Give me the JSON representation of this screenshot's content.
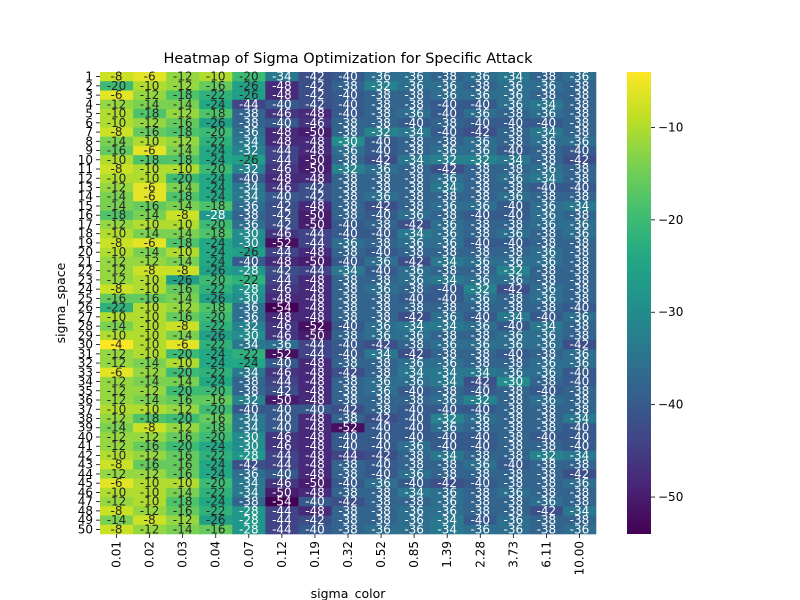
{
  "chart_data": {
    "type": "heatmap",
    "title": "Heatmap of Sigma Optimization for Specific Attack",
    "xlabel": "sigma_color",
    "ylabel": "sigma_space",
    "x_categories": [
      "0.01",
      "0.02",
      "0.03",
      "0.04",
      "0.07",
      "0.12",
      "0.19",
      "0.32",
      "0.52",
      "0.85",
      "1.39",
      "2.28",
      "3.73",
      "6.11",
      "10.00"
    ],
    "y_categories": [
      "1",
      "2",
      "3",
      "4",
      "5",
      "6",
      "7",
      "8",
      "9",
      "10",
      "11",
      "12",
      "13",
      "14",
      "15",
      "16",
      "17",
      "18",
      "19",
      "20",
      "21",
      "22",
      "23",
      "24",
      "25",
      "26",
      "27",
      "28",
      "29",
      "30",
      "31",
      "32",
      "33",
      "34",
      "35",
      "36",
      "37",
      "38",
      "39",
      "40",
      "41",
      "42",
      "43",
      "44",
      "45",
      "46",
      "47",
      "48",
      "49",
      "50"
    ],
    "values": [
      [
        -8,
        -6,
        -12,
        -10,
        -20,
        -34,
        -42,
        -40,
        -36,
        -36,
        -38,
        -36,
        -34,
        -38,
        -36
      ],
      [
        -20,
        -10,
        -12,
        -16,
        -26,
        -48,
        -42,
        -38,
        -32,
        -36,
        -36,
        -38,
        -36,
        -36,
        -38
      ],
      [
        -6,
        -12,
        -18,
        -22,
        -26,
        -48,
        -42,
        -40,
        -38,
        -38,
        -36,
        -36,
        -36,
        -38,
        -38
      ],
      [
        -12,
        -14,
        -14,
        -24,
        -44,
        -40,
        -42,
        -40,
        -38,
        -38,
        -40,
        -40,
        -36,
        -34,
        -38
      ],
      [
        -10,
        -18,
        -12,
        -18,
        -38,
        -46,
        -48,
        -40,
        -38,
        -36,
        -40,
        -36,
        -38,
        -36,
        -38
      ],
      [
        -10,
        -12,
        -16,
        -26,
        -38,
        -40,
        -46,
        -38,
        -38,
        -40,
        -38,
        -40,
        -40,
        -40,
        -38
      ],
      [
        -8,
        -16,
        -18,
        -20,
        -36,
        -48,
        -50,
        -38,
        -32,
        -34,
        -40,
        -42,
        -38,
        -34,
        -38
      ],
      [
        -14,
        -10,
        -12,
        -22,
        -34,
        -48,
        -48,
        -30,
        -40,
        -38,
        -38,
        -36,
        -38,
        -36,
        -36
      ],
      [
        -16,
        -6,
        -14,
        -24,
        -32,
        -44,
        -48,
        -36,
        -40,
        -38,
        -36,
        -36,
        -40,
        -38,
        -40
      ],
      [
        -10,
        -18,
        -18,
        -24,
        -26,
        -44,
        -50,
        -38,
        -42,
        -34,
        -32,
        -32,
        -34,
        -38,
        -42
      ],
      [
        -8,
        -10,
        -10,
        -20,
        -32,
        -46,
        -50,
        -32,
        -36,
        -38,
        -42,
        -38,
        -38,
        -36,
        -38
      ],
      [
        -10,
        -10,
        -20,
        -24,
        -40,
        -48,
        -48,
        -38,
        -38,
        -38,
        -36,
        -38,
        -36,
        -34,
        -38
      ],
      [
        -12,
        -6,
        -14,
        -24,
        -34,
        -46,
        -42,
        -38,
        -38,
        -38,
        -34,
        -38,
        -38,
        -40,
        -40
      ],
      [
        -14,
        -6,
        -18,
        -24,
        -34,
        -40,
        -42,
        -38,
        -36,
        -38,
        -38,
        -38,
        -36,
        -38,
        -38
      ],
      [
        -14,
        -16,
        -14,
        -18,
        -36,
        -42,
        -48,
        -38,
        -42,
        -38,
        -36,
        -36,
        -40,
        -36,
        -34
      ],
      [
        -18,
        -14,
        -8,
        -28,
        -38,
        -42,
        -50,
        -38,
        -40,
        -36,
        -38,
        -40,
        -40,
        -36,
        -38
      ],
      [
        -12,
        -10,
        -10,
        -20,
        -36,
        -42,
        -50,
        -40,
        -38,
        -42,
        -36,
        -38,
        -38,
        -36,
        -36
      ],
      [
        -10,
        -14,
        -14,
        -18,
        -30,
        -46,
        -44,
        -40,
        -40,
        -34,
        -36,
        -38,
        -36,
        -38,
        -36
      ],
      [
        -8,
        -6,
        -18,
        -24,
        -30,
        -52,
        -44,
        -36,
        -38,
        -36,
        -36,
        -40,
        -40,
        -38,
        -38
      ],
      [
        -10,
        -14,
        -10,
        -24,
        -26,
        -44,
        -48,
        -38,
        -40,
        -38,
        -38,
        -38,
        -38,
        -36,
        -38
      ],
      [
        -12,
        -12,
        -14,
        -24,
        -40,
        -48,
        -50,
        -40,
        -36,
        -42,
        -34,
        -36,
        -36,
        -36,
        -38
      ],
      [
        -12,
        -8,
        -8,
        -26,
        -28,
        -42,
        -44,
        -34,
        -40,
        -36,
        -38,
        -38,
        -32,
        -38,
        -38
      ],
      [
        -12,
        -10,
        -26,
        -20,
        -22,
        -44,
        -48,
        -38,
        -38,
        -36,
        -34,
        -36,
        -36,
        -38,
        -38
      ],
      [
        -8,
        -10,
        -16,
        -22,
        -28,
        -46,
        -48,
        -38,
        -36,
        -38,
        -40,
        -32,
        -42,
        -36,
        -38
      ],
      [
        -16,
        -16,
        -14,
        -26,
        -30,
        -48,
        -48,
        -38,
        -38,
        -40,
        -40,
        -36,
        -38,
        -36,
        -38
      ],
      [
        -22,
        -10,
        -12,
        -18,
        -36,
        -54,
        -48,
        -38,
        -38,
        -38,
        -38,
        -38,
        -38,
        -38,
        -40
      ],
      [
        -10,
        -10,
        -16,
        -20,
        -36,
        -48,
        -48,
        -38,
        -38,
        -42,
        -36,
        -40,
        -34,
        -40,
        -36
      ],
      [
        -14,
        -10,
        -8,
        -22,
        -32,
        -46,
        -52,
        -40,
        -36,
        -34,
        -34,
        -36,
        -40,
        -34,
        -38
      ],
      [
        -10,
        -10,
        -14,
        -26,
        -30,
        -46,
        -50,
        -38,
        -36,
        -36,
        -38,
        -38,
        -36,
        -36,
        -38
      ],
      [
        -4,
        -10,
        -6,
        -22,
        -34,
        -36,
        -44,
        -40,
        -42,
        -38,
        -36,
        -36,
        -36,
        -36,
        -42
      ],
      [
        -12,
        -10,
        -20,
        -24,
        -22,
        -52,
        -44,
        -40,
        -34,
        -42,
        -38,
        -38,
        -40,
        -38,
        -36
      ],
      [
        -12,
        -14,
        -10,
        -24,
        -24,
        -40,
        -48,
        -38,
        -38,
        -36,
        -36,
        -38,
        -38,
        -36,
        -36
      ],
      [
        -6,
        -12,
        -20,
        -22,
        -34,
        -46,
        -48,
        -42,
        -38,
        -34,
        -34,
        -34,
        -36,
        -36,
        -40
      ],
      [
        -12,
        -14,
        -14,
        -24,
        -38,
        -44,
        -48,
        -38,
        -36,
        -36,
        -34,
        -42,
        -30,
        -38,
        -40
      ],
      [
        -12,
        -12,
        -20,
        -20,
        -38,
        -42,
        -48,
        -38,
        -36,
        -40,
        -38,
        -40,
        -38,
        -40,
        -38
      ],
      [
        -12,
        -14,
        -16,
        -16,
        -32,
        -50,
        -48,
        -38,
        -38,
        -38,
        -36,
        -32,
        -38,
        -36,
        -38
      ],
      [
        -10,
        -10,
        -12,
        -20,
        -40,
        -40,
        -40,
        -42,
        -38,
        -40,
        -40,
        -40,
        -38,
        -38,
        -38
      ],
      [
        -12,
        -18,
        -20,
        -16,
        -34,
        -40,
        -48,
        -38,
        -42,
        -40,
        -32,
        -36,
        -38,
        -38,
        -34
      ],
      [
        -14,
        -8,
        -12,
        -18,
        -34,
        -40,
        -48,
        -52,
        -40,
        -40,
        -36,
        -38,
        -38,
        -38,
        -40
      ],
      [
        -12,
        -12,
        -16,
        -20,
        -30,
        -46,
        -48,
        -40,
        -40,
        -40,
        -40,
        -40,
        -38,
        -40,
        -40
      ],
      [
        -12,
        -16,
        -20,
        -24,
        -30,
        -46,
        -48,
        -40,
        -40,
        -36,
        -40,
        -40,
        -38,
        -38,
        -40
      ],
      [
        -10,
        -12,
        -16,
        -22,
        -28,
        -44,
        -48,
        -44,
        -42,
        -38,
        -34,
        -38,
        -38,
        -32,
        -34
      ],
      [
        -8,
        -16,
        -16,
        -24,
        -42,
        -44,
        -48,
        -38,
        -40,
        -38,
        -38,
        -36,
        -40,
        -38,
        -38
      ],
      [
        -12,
        -12,
        -16,
        -24,
        -36,
        -40,
        -48,
        -38,
        -40,
        -36,
        -38,
        -38,
        -38,
        -38,
        -42
      ],
      [
        -6,
        -10,
        -10,
        -20,
        -34,
        -46,
        -50,
        -40,
        -36,
        -40,
        -42,
        -40,
        -38,
        -38,
        -36
      ],
      [
        -10,
        -10,
        -14,
        -22,
        -34,
        -50,
        -48,
        -38,
        -38,
        -34,
        -36,
        -38,
        -36,
        -38,
        -38
      ],
      [
        -12,
        -10,
        -18,
        -24,
        -38,
        -54,
        -40,
        -42,
        -38,
        -38,
        -36,
        -38,
        -38,
        -36,
        -38
      ],
      [
        -8,
        -12,
        -16,
        -22,
        -28,
        -44,
        -48,
        -38,
        -38,
        -36,
        -36,
        -38,
        -38,
        -42,
        -34
      ],
      [
        -14,
        -8,
        -12,
        -26,
        -28,
        -44,
        -42,
        -38,
        -38,
        -36,
        -34,
        -40,
        -36,
        -38,
        -38
      ],
      [
        -8,
        -12,
        -14,
        -16,
        -28,
        -44,
        -40,
        -38,
        -36,
        -36,
        -34,
        -36,
        -36,
        -38,
        -36
      ]
    ],
    "colorbar": {
      "colormap": "viridis",
      "vmin": -54,
      "vmax": -4,
      "ticks": [
        -50,
        -40,
        -30,
        -20,
        -10
      ]
    },
    "annotations": true
  }
}
